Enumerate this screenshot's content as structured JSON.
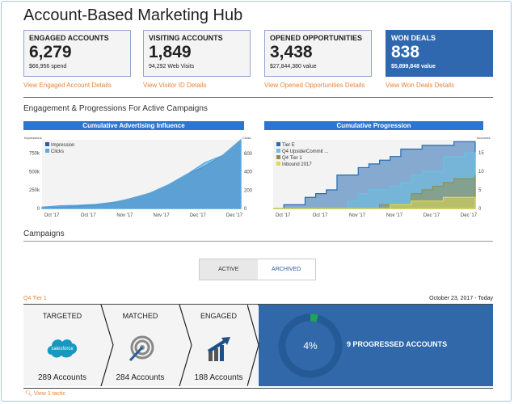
{
  "title": "Account-Based Marketing Hub",
  "cards": [
    {
      "title": "ENGAGED ACCOUNTS",
      "value": "6,279",
      "sub": "$66,956 spend",
      "link": "View Engaged Account Details"
    },
    {
      "title": "VISITING ACCOUNTS",
      "value": "1,849",
      "sub": "94,292 Web Visits",
      "link": "View Visitor ID Details"
    },
    {
      "title": "OPENED OPPORTUNITIES",
      "value": "3,438",
      "sub": "$27,844,380 value",
      "link": "View Opened Opportunities Details"
    },
    {
      "title": "WON DEALS",
      "value": "838",
      "sub": "$5,899,848 value",
      "link": "View Won Deals Details"
    }
  ],
  "section_engagement": "Engagement & Progressions For Active Campaigns",
  "chart_data": [
    {
      "type": "area",
      "title": "Cumulative Advertising Influence",
      "ylabel_left": "Impressions",
      "ylabel_right": "Clicks",
      "x_ticks": [
        "Oct '17",
        "Oct '17",
        "Nov '17",
        "Nov '17",
        "Dec '17",
        "Dec '17"
      ],
      "y_left_ticks": [
        "0",
        "250k",
        "500k",
        "750k"
      ],
      "y_right_ticks": [
        "0",
        "200",
        "400",
        "600"
      ],
      "ylim_left": [
        0,
        930000
      ],
      "ylim_right": [
        0,
        750
      ],
      "legend": "top-left",
      "series": [
        {
          "name": "Impression",
          "axis": "left",
          "color": "#2a5d9c",
          "values": [
            10000,
            20000,
            30000,
            45000,
            80000,
            140000,
            210000,
            320000,
            460000,
            570000,
            720000,
            930000
          ]
        },
        {
          "name": "Clicks",
          "axis": "right",
          "color": "#5aaae0",
          "values": [
            15,
            30,
            35,
            45,
            70,
            110,
            170,
            260,
            370,
            500,
            580,
            750
          ]
        }
      ]
    },
    {
      "type": "area",
      "title": "Cumulative Progression",
      "ylabel_right": "Accounts",
      "x_ticks": [
        "Oct '17",
        "Oct '17",
        "Nov '17",
        "Nov '17",
        "Dec '17",
        "Dec '17"
      ],
      "y_right_ticks": [
        "0",
        "5",
        "10",
        "15"
      ],
      "ylim": [
        0,
        18.5
      ],
      "legend": "top-left",
      "step": true,
      "series": [
        {
          "name": "Tier E",
          "color": "#2a6bb0",
          "values": [
            0,
            1,
            1,
            3,
            4,
            5,
            9,
            9,
            11,
            12,
            13,
            14,
            16,
            16,
            17,
            17,
            17,
            18,
            18,
            18
          ]
        },
        {
          "name": "Q4 Upside/Commit ...",
          "color": "#6cc0e0",
          "values": [
            0,
            0,
            0,
            0,
            0,
            0,
            0,
            2,
            4,
            5,
            5,
            6,
            7,
            9,
            10,
            10,
            14,
            14,
            15,
            15
          ]
        },
        {
          "name": "Q4 Tier 1",
          "color": "#8f8f55",
          "values": [
            0,
            0,
            0,
            0,
            0,
            0,
            0,
            0,
            0,
            0,
            1,
            1,
            1,
            4,
            5,
            6,
            7,
            8,
            8,
            9
          ]
        },
        {
          "name": "Inbound 2017",
          "color": "#e3d84a",
          "values": [
            0,
            0,
            0,
            0,
            0,
            0,
            0,
            0,
            0,
            0,
            0,
            1,
            1,
            2,
            2,
            2,
            3,
            3,
            3,
            3
          ]
        }
      ]
    }
  ],
  "section_campaigns": "Campaigns",
  "toggle": {
    "active": "ACTIVE",
    "archived": "ARCHIVED"
  },
  "campaign": {
    "name": "Q4 Tier 1",
    "date_range": "October 23, 2017 - Today",
    "steps": [
      {
        "label": "TARGETED",
        "count": "289 Accounts",
        "logo": "salesforce"
      },
      {
        "label": "MATCHED",
        "count": "284 Accounts"
      },
      {
        "label": "ENGAGED",
        "count": "188 Accounts"
      }
    ],
    "progress_percent": 4,
    "progress_label": "4%",
    "progressed": "9 PROGRESSED ACCOUNTS",
    "tactic_link": "View 1 tactic"
  }
}
